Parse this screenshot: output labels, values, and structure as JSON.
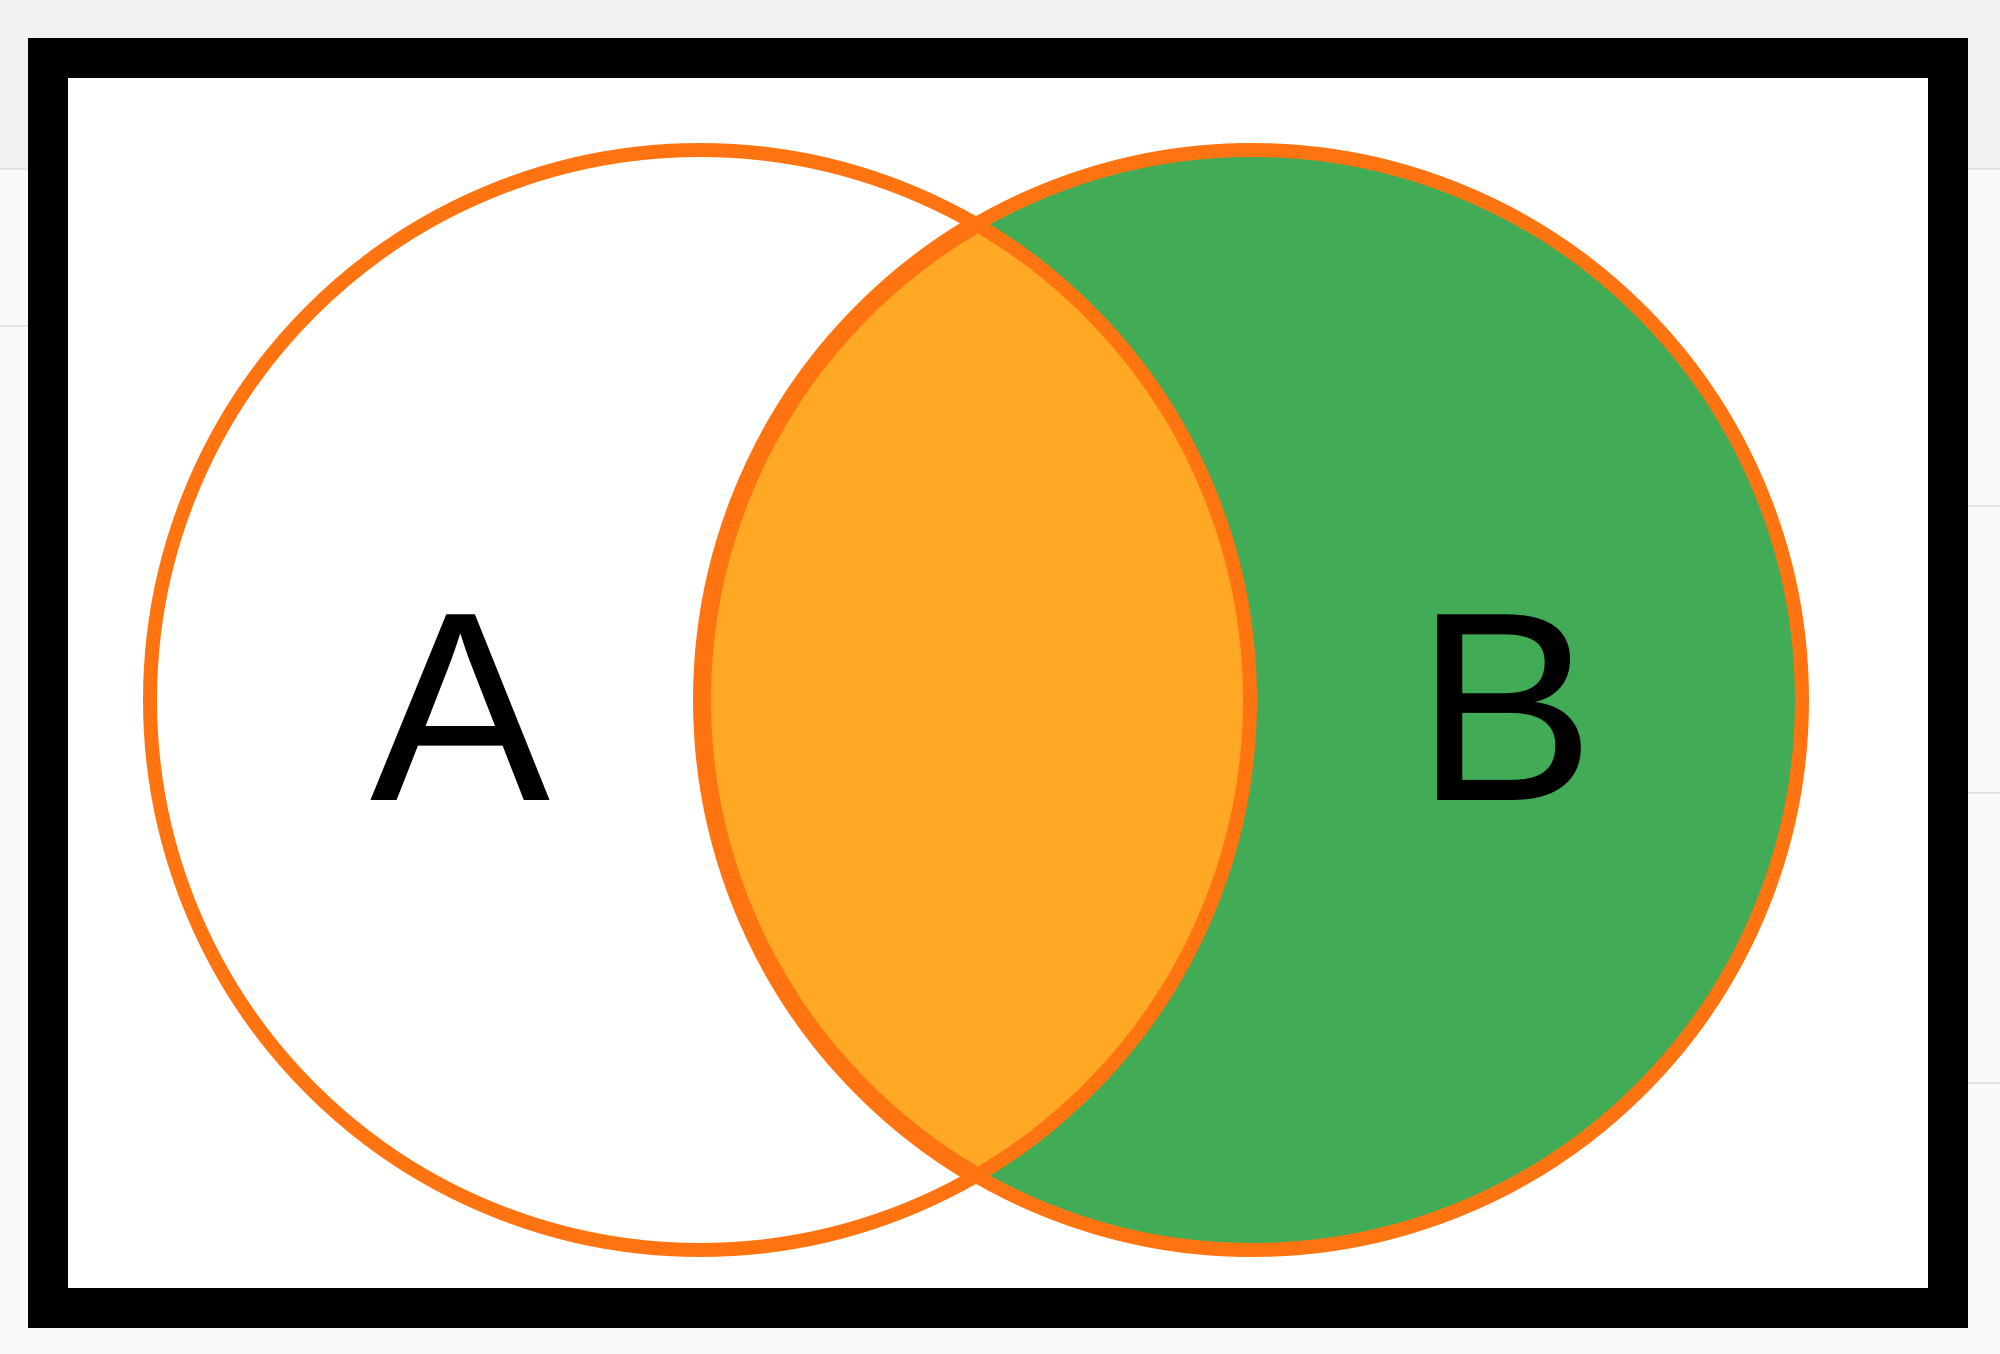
{
  "diagram": {
    "type": "venn-two-sets",
    "sets": [
      {
        "label": "A",
        "fill": "#ffffff"
      },
      {
        "label": "B",
        "fill": "#42ab55"
      }
    ],
    "intersection_fill": "#ffa823",
    "outline_color": "#ff7410",
    "frame_color": "#000000"
  }
}
